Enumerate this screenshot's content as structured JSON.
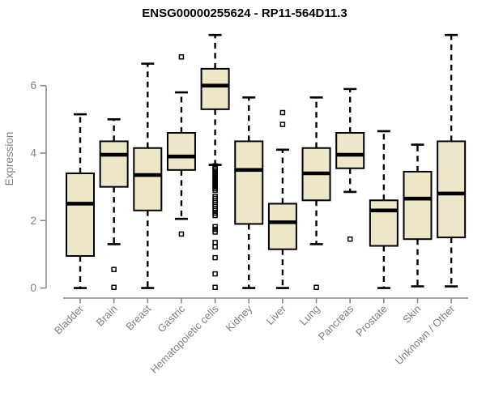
{
  "chart_data": {
    "type": "boxplot",
    "title": "ENSG00000255624 - RP11-564D11.3",
    "ylabel": "Expression",
    "xlabel": "",
    "yticks": [
      0,
      2,
      4,
      6
    ],
    "ylim": [
      0,
      7.6
    ],
    "grid": false,
    "legend": "none",
    "categories": [
      "Bladder",
      "Brain",
      "Breast",
      "Gastric",
      "Hematopoietic cells",
      "Kidney",
      "Liver",
      "Lung",
      "Pancreas",
      "Prostate",
      "Skin",
      "Unknown / Other"
    ],
    "series": [
      {
        "category": "Bladder",
        "whisker_low": 0.0,
        "q1": 0.95,
        "median": 2.5,
        "q3": 3.4,
        "whisker_high": 5.15,
        "outliers": []
      },
      {
        "category": "Brain",
        "whisker_low": 1.3,
        "q1": 3.0,
        "median": 3.95,
        "q3": 4.35,
        "whisker_high": 5.0,
        "outliers": [
          0.55,
          0.02
        ]
      },
      {
        "category": "Breast",
        "whisker_low": 0.0,
        "q1": 2.3,
        "median": 3.35,
        "q3": 4.15,
        "whisker_high": 6.65,
        "outliers": []
      },
      {
        "category": "Gastric",
        "whisker_low": 2.05,
        "q1": 3.5,
        "median": 3.9,
        "q3": 4.6,
        "whisker_high": 5.8,
        "outliers": [
          6.85,
          1.6
        ]
      },
      {
        "category": "Hematopoietic cells",
        "whisker_low": 3.65,
        "q1": 5.3,
        "median": 6.0,
        "q3": 6.5,
        "whisker_high": 7.5,
        "outliers": [
          3.62,
          3.55,
          3.5,
          3.45,
          3.4,
          3.35,
          3.3,
          3.25,
          3.2,
          3.15,
          3.1,
          3.05,
          3.0,
          2.95,
          2.9,
          2.72,
          2.66,
          2.6,
          2.54,
          2.48,
          2.42,
          2.36,
          2.3,
          2.22,
          2.15,
          1.82,
          1.74,
          1.66,
          1.35,
          1.22,
          0.9,
          0.42,
          0.02
        ]
      },
      {
        "category": "Kidney",
        "whisker_low": 0.0,
        "q1": 1.9,
        "median": 3.5,
        "q3": 4.35,
        "whisker_high": 5.65,
        "outliers": []
      },
      {
        "category": "Liver",
        "whisker_low": 0.0,
        "q1": 1.15,
        "median": 1.95,
        "q3": 2.5,
        "whisker_high": 4.1,
        "outliers": [
          5.2,
          4.85
        ]
      },
      {
        "category": "Lung",
        "whisker_low": 1.3,
        "q1": 2.6,
        "median": 3.4,
        "q3": 4.15,
        "whisker_high": 5.65,
        "outliers": [
          0.02
        ]
      },
      {
        "category": "Pancreas",
        "whisker_low": 2.85,
        "q1": 3.55,
        "median": 3.95,
        "q3": 4.6,
        "whisker_high": 5.9,
        "outliers": [
          1.45
        ]
      },
      {
        "category": "Prostate",
        "whisker_low": 0.0,
        "q1": 1.25,
        "median": 2.3,
        "q3": 2.6,
        "whisker_high": 4.65,
        "outliers": []
      },
      {
        "category": "Skin",
        "whisker_low": 0.05,
        "q1": 1.45,
        "median": 2.65,
        "q3": 3.45,
        "whisker_high": 4.25,
        "outliers": []
      },
      {
        "category": "Unknown / Other",
        "whisker_low": 0.05,
        "q1": 1.5,
        "median": 2.8,
        "q3": 4.35,
        "whisker_high": 7.5,
        "outliers": []
      }
    ],
    "colors": {
      "background": "#ffffff",
      "box_fill": "#EDE6C8",
      "box_border": "#000000",
      "median": "#000000",
      "axis": "#8c8c8c",
      "tick_label": "#808080",
      "title": "#000000"
    }
  }
}
